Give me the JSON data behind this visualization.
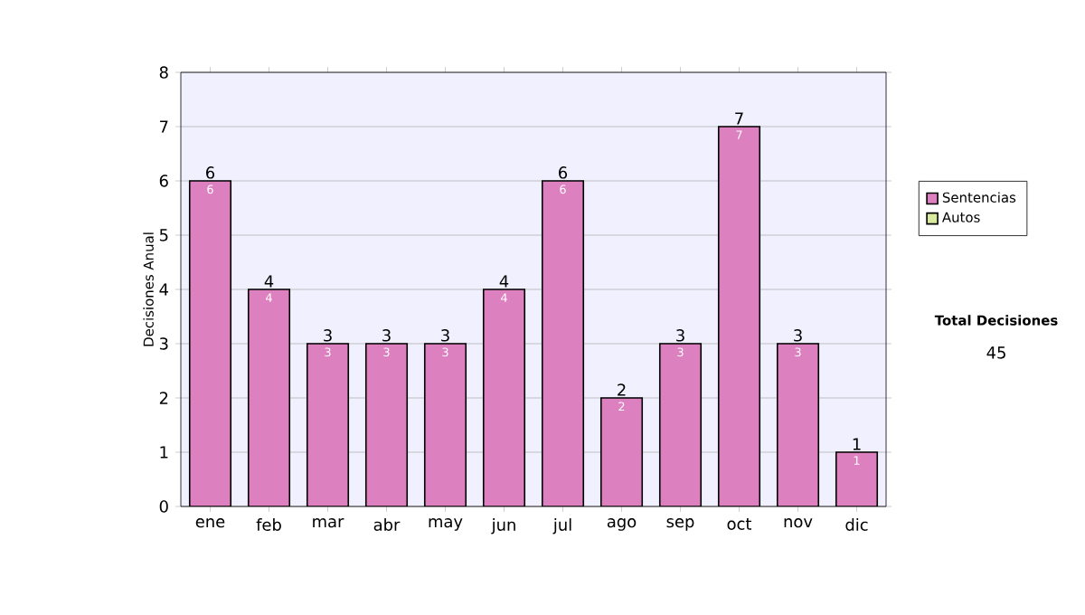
{
  "chart_data": {
    "type": "bar",
    "stacked": true,
    "ylabel": "Decisiones Anual",
    "categories": [
      "ene",
      "feb",
      "mar",
      "abr",
      "may",
      "jun",
      "jul",
      "ago",
      "sep",
      "oct",
      "nov",
      "dic"
    ],
    "series": [
      {
        "name": "Sentencias",
        "color": "#dd80c0",
        "values": [
          6,
          4,
          3,
          3,
          3,
          4,
          6,
          2,
          3,
          7,
          3,
          1
        ],
        "value_labels": [
          "6",
          "4",
          "3",
          "3",
          "3",
          "4",
          "6",
          "2",
          "3",
          "7",
          "3",
          "1"
        ]
      },
      {
        "name": "Autos",
        "color": "#d8eaa0",
        "values": [
          0,
          0,
          0,
          0,
          0,
          0,
          0,
          0,
          0,
          0,
          0,
          0
        ]
      }
    ],
    "totals": [
      "6",
      "4",
      "3",
      "3",
      "3",
      "4",
      "6",
      "2",
      "3",
      "7",
      "3",
      "1"
    ],
    "ylim": [
      0,
      8
    ],
    "yticks": [
      0,
      1,
      2,
      3,
      4,
      5,
      6,
      7,
      8
    ],
    "grid": "y",
    "legend": "right",
    "annotations": [
      "Total Decisiones",
      "45"
    ]
  }
}
